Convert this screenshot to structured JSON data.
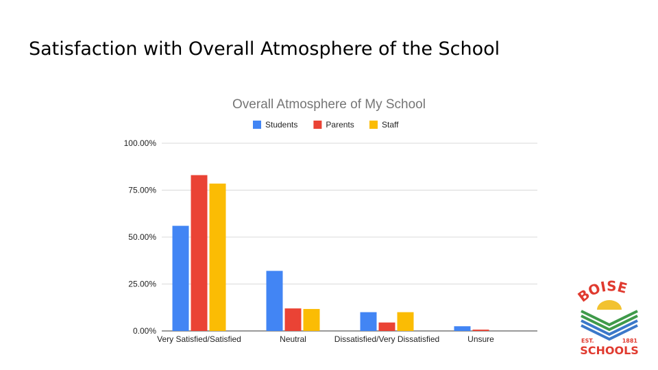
{
  "slide": {
    "title": "Satisfaction with Overall Atmosphere of the School"
  },
  "logo": {
    "top_text": "BOISE",
    "est_label": "EST.",
    "year": "1881",
    "bottom_text": "SCHOOLS",
    "colors": {
      "red": "#e03a2f",
      "green": "#3f9a4a",
      "blue": "#3b78c9",
      "yellow": "#f2c230"
    }
  },
  "chart_data": {
    "type": "bar",
    "title": "Overall Atmosphere of My School",
    "categories": [
      "Very Satisfied/Satisfied",
      "Neutral",
      "Dissatisfied/Very Dissatisfied",
      "Unsure"
    ],
    "series": [
      {
        "name": "Students",
        "color": "#4285f4",
        "values": [
          56,
          32,
          10,
          2.5
        ]
      },
      {
        "name": "Parents",
        "color": "#ea4335",
        "values": [
          83,
          12,
          4.5,
          0.7
        ]
      },
      {
        "name": "Staff",
        "color": "#fbbc04",
        "values": [
          78.5,
          11.7,
          10,
          0
        ]
      }
    ],
    "ylim": [
      0,
      100
    ],
    "yticks": [
      {
        "value": 0,
        "label": "0.00%"
      },
      {
        "value": 25,
        "label": "25.00%"
      },
      {
        "value": 50,
        "label": "50.00%"
      },
      {
        "value": 75,
        "label": "75.00%"
      },
      {
        "value": 100,
        "label": "100.00%"
      }
    ],
    "xlabel": "",
    "ylabel": "",
    "grid": true,
    "legend_position": "top"
  }
}
